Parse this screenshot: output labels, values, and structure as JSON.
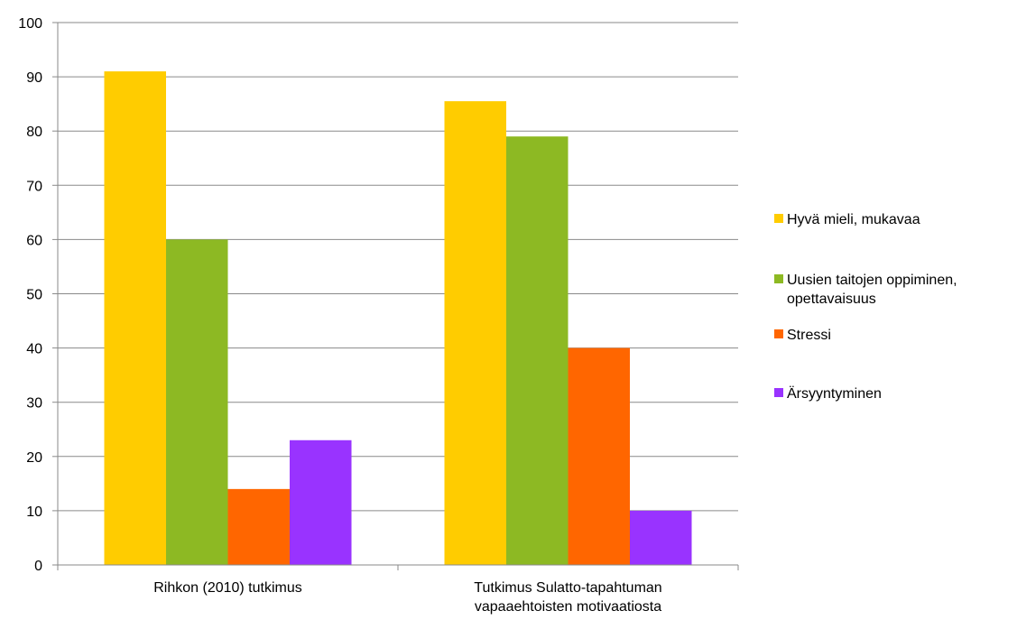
{
  "chart_data": {
    "type": "bar",
    "categories": [
      [
        "Rihkon (2010) tutkimus"
      ],
      [
        "Tutkimus Sulatto-tapahtuman",
        "vapaaehtoisten motivaatiosta"
      ]
    ],
    "series": [
      {
        "name": "Hyvä mieli, mukavaa",
        "color": "#FFCC00",
        "values": [
          91,
          85.5
        ]
      },
      {
        "name": "Uusien taitojen oppiminen, opettavaisuus",
        "name_lines": [
          "Uusien taitojen oppiminen,",
          "opettavaisuus"
        ],
        "color": "#8DB923",
        "values": [
          60,
          79
        ]
      },
      {
        "name": "Stressi",
        "color": "#FF6600",
        "values": [
          14,
          40
        ]
      },
      {
        "name": "Ärsyyntyminen",
        "color": "#9933FF",
        "values": [
          23,
          10
        ]
      }
    ],
    "ylim": [
      0,
      100
    ],
    "yticks": [
      0,
      10,
      20,
      30,
      40,
      50,
      60,
      70,
      80,
      90,
      100
    ],
    "grid": true,
    "legend_position": "right",
    "title": "",
    "xlabel": "",
    "ylabel": ""
  }
}
